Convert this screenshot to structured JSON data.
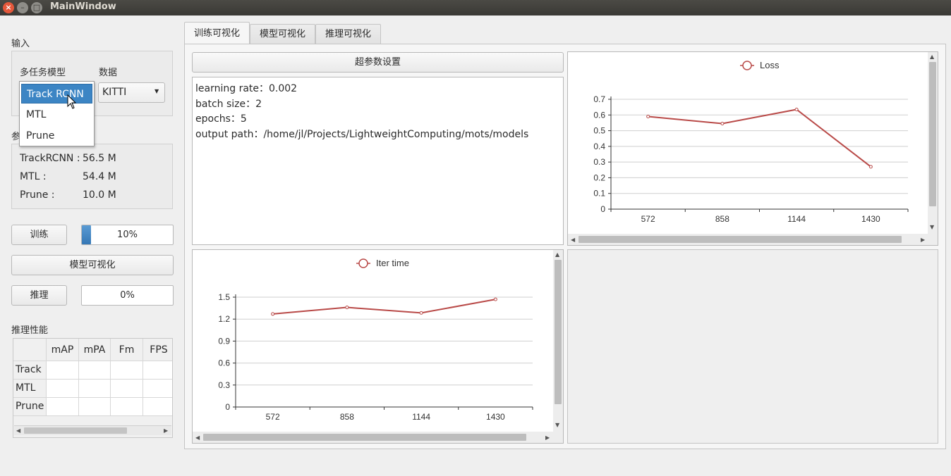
{
  "window": {
    "title": "MainWindow"
  },
  "input": {
    "title": "输入",
    "model_label": "多任务模型",
    "data_label": "数据",
    "data_selected": "KITTI",
    "model_options": [
      "Track RCNN",
      "MTL",
      "Prune"
    ],
    "model_selected_index": 0
  },
  "params": {
    "title": "参",
    "rows": [
      {
        "name": "TrackRCNN :",
        "value": "56.5 M"
      },
      {
        "name": "MTL :",
        "value": "54.4 M"
      },
      {
        "name": "Prune :",
        "value": "10.0 M"
      }
    ]
  },
  "controls": {
    "train_label": "训练",
    "train_progress_text": "10%",
    "train_progress": 0.1,
    "visualize_label": "模型可视化",
    "infer_label": "推理",
    "infer_progress_text": "0%",
    "infer_progress": 0.0
  },
  "performance": {
    "title": "推理性能",
    "columns": [
      "mAP",
      "mPA",
      "Fm",
      "FPS"
    ],
    "rows": [
      "Track",
      "MTL",
      "Prune"
    ]
  },
  "tabs": [
    "训练可视化",
    "模型可视化",
    "推理可视化"
  ],
  "active_tab": 0,
  "hyperparams": {
    "button_label": "超参数设置",
    "lines": [
      "learning rate：0.002",
      "batch size：2",
      "epochs：5",
      "output path：/home/jl/Projects/LightweightComputing/mots/models"
    ]
  },
  "colors": {
    "accent": "#3c85c4",
    "series": "#b94a48"
  },
  "chart_data": [
    {
      "type": "line",
      "legend": "Loss",
      "legend_position": "top-center",
      "categories": [
        "572",
        "858",
        "1144",
        "1430"
      ],
      "series": [
        {
          "name": "Loss",
          "values": [
            0.59,
            0.545,
            0.635,
            0.27
          ]
        }
      ],
      "ylim": [
        0,
        0.7
      ],
      "yticks": [
        "0",
        "0.1",
        "0.2",
        "0.3",
        "0.4",
        "0.5",
        "0.6",
        "0.7"
      ],
      "grid": true
    },
    {
      "type": "line",
      "legend": "Iter time",
      "legend_position": "top-center",
      "categories": [
        "572",
        "858",
        "1144",
        "1430"
      ],
      "series": [
        {
          "name": "Iter time",
          "values": [
            1.27,
            1.36,
            1.285,
            1.47
          ]
        }
      ],
      "ylim": [
        0,
        1.5
      ],
      "yticks": [
        "0",
        "0.3",
        "0.6",
        "0.9",
        "1.2",
        "1.5"
      ],
      "grid": true
    }
  ]
}
